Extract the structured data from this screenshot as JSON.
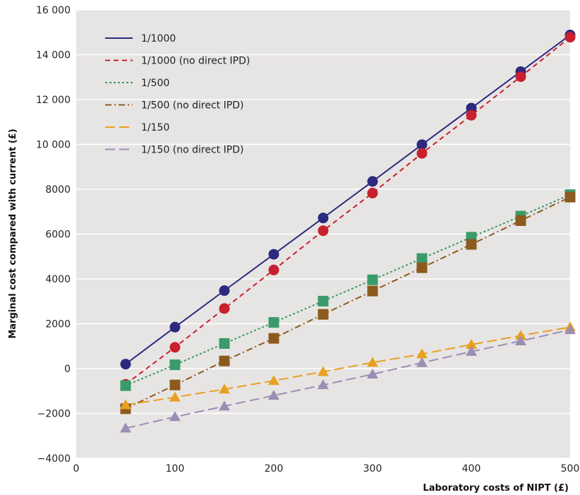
{
  "chart_data": {
    "type": "line",
    "title": "",
    "xlabel": "Laboratory costs of NIPT (£)",
    "ylabel": "Marginal cost compared with current (£)",
    "xlim": [
      0,
      500
    ],
    "ylim": [
      -4000,
      16000
    ],
    "x_ticks": [
      0,
      100,
      200,
      300,
      400,
      500
    ],
    "y_ticks": [
      -4000,
      -2000,
      0,
      2000,
      4000,
      6000,
      8000,
      10000,
      12000,
      14000,
      16000
    ],
    "x_tick_labels": [
      "0",
      "100",
      "200",
      "300",
      "400",
      "500"
    ],
    "y_tick_labels": [
      "−4000",
      "−2000",
      "0",
      "2000",
      "4000",
      "6000",
      "8000",
      "10 000",
      "12 000",
      "14 000",
      "16 000"
    ],
    "grid": "horizontal",
    "legend_position": "top-left",
    "x": [
      50,
      100,
      150,
      200,
      250,
      300,
      350,
      400,
      450,
      500
    ],
    "series": [
      {
        "name": "1/1000",
        "values": [
          200,
          1850,
          3480,
          5100,
          6720,
          8350,
          9990,
          11620,
          13250,
          14880
        ],
        "color": "#2b2a7e",
        "dash": "solid",
        "marker": "circle"
      },
      {
        "name": "1/1000 (no direct IPD)",
        "values": [
          -700,
          950,
          2680,
          4400,
          6150,
          7830,
          9600,
          11300,
          13020,
          14780
        ],
        "color": "#c8202e",
        "dash": "dashed",
        "marker": "circle"
      },
      {
        "name": "1/500",
        "values": [
          -760,
          170,
          1120,
          2060,
          3010,
          3960,
          4910,
          5860,
          6800,
          7760
        ],
        "color": "#3a9a6a",
        "dash": "dotted",
        "marker": "square"
      },
      {
        "name": "1/500 (no direct IPD)",
        "values": [
          -1790,
          -730,
          340,
          1350,
          2420,
          3460,
          4500,
          5540,
          6600,
          7650
        ],
        "color": "#8c5a1e",
        "dash": "dashdot",
        "marker": "square"
      },
      {
        "name": "1/150",
        "values": [
          -1620,
          -1280,
          -920,
          -540,
          -140,
          270,
          650,
          1070,
          1470,
          1850
        ],
        "color": "#e8a020",
        "dash": "longdash",
        "marker": "triangle"
      },
      {
        "name": "1/150 (no direct IPD)",
        "values": [
          -2660,
          -2150,
          -1680,
          -1200,
          -730,
          -250,
          260,
          760,
          1230,
          1730
        ],
        "color": "#9a8eb4",
        "dash": "longdash",
        "marker": "triangle"
      }
    ]
  }
}
